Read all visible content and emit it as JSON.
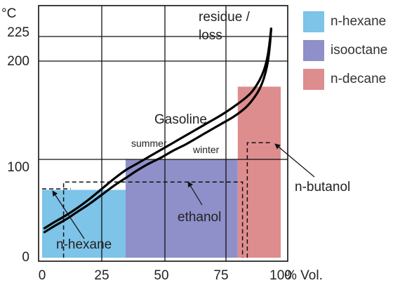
{
  "chart_data": {
    "type": "area",
    "x_unit_label": "% Vol.",
    "y_unit_label": "°C",
    "xlim": [
      0,
      100
    ],
    "ylim": [
      0,
      245
    ],
    "x_ticks": [
      0,
      25,
      50,
      75,
      100
    ],
    "y_ticks": [
      0,
      100,
      200,
      225
    ],
    "grid": true,
    "legend_placement": "right",
    "components": [
      {
        "name": "n-hexane",
        "label": "n-hexane",
        "color": "#7ec3e8",
        "x_start": 0,
        "x_end": 35,
        "boiling_point": 69
      },
      {
        "name": "isooctane",
        "label": "isooctane",
        "color": "#8f90c9",
        "x_start": 35,
        "x_end": 82,
        "boiling_point": 100
      },
      {
        "name": "n-decane",
        "label": "n-decane",
        "color": "#de8d8e",
        "x_start": 82,
        "x_end": 100,
        "boiling_point": 174
      }
    ],
    "series": [
      {
        "name": "summer",
        "values": [
          [
            1,
            30
          ],
          [
            5,
            36
          ],
          [
            10,
            43
          ],
          [
            15,
            51
          ],
          [
            20,
            60
          ],
          [
            25,
            70
          ],
          [
            30,
            80
          ],
          [
            35,
            89
          ],
          [
            40,
            96
          ],
          [
            45,
            103
          ],
          [
            50,
            110
          ],
          [
            55,
            117
          ],
          [
            60,
            124
          ],
          [
            65,
            131
          ],
          [
            70,
            138
          ],
          [
            75,
            145
          ],
          [
            80,
            153
          ],
          [
            85,
            162
          ],
          [
            88,
            169
          ],
          [
            91,
            180
          ],
          [
            93,
            191
          ],
          [
            94.5,
            205
          ],
          [
            95.5,
            222
          ],
          [
            96,
            233
          ]
        ]
      },
      {
        "name": "winter",
        "values": [
          [
            1,
            26
          ],
          [
            5,
            32
          ],
          [
            10,
            39
          ],
          [
            15,
            47
          ],
          [
            20,
            55
          ],
          [
            25,
            64
          ],
          [
            30,
            73
          ],
          [
            35,
            81
          ],
          [
            40,
            89
          ],
          [
            45,
            96
          ],
          [
            50,
            102
          ],
          [
            55,
            109
          ],
          [
            60,
            115
          ],
          [
            65,
            122
          ],
          [
            70,
            129
          ],
          [
            75,
            136
          ],
          [
            80,
            143
          ],
          [
            85,
            152
          ],
          [
            88,
            160
          ],
          [
            91,
            171
          ],
          [
            93,
            183
          ],
          [
            94.5,
            198
          ],
          [
            95.5,
            217
          ],
          [
            96,
            233
          ]
        ]
      }
    ],
    "dashed_series": [
      {
        "name": "n-butanol",
        "values": [
          [
            86,
            0
          ],
          [
            86,
            117
          ],
          [
            96,
            117
          ]
        ]
      },
      {
        "name": "ethanol",
        "values": [
          [
            9,
            0
          ],
          [
            9,
            77
          ],
          [
            84,
            77
          ],
          [
            84,
            0
          ]
        ]
      },
      {
        "name": "n-hexane-dashed",
        "values": [
          [
            0,
            70
          ],
          [
            12,
            70
          ]
        ]
      }
    ],
    "annotations": [
      {
        "id": "residue",
        "lines": [
          "residue /",
          "loss"
        ]
      },
      {
        "id": "gasoline",
        "text": "Gasoline"
      },
      {
        "id": "summer",
        "text": "summer"
      },
      {
        "id": "winter",
        "text": "winter"
      },
      {
        "id": "n-butanol",
        "text": "n-butanol"
      },
      {
        "id": "ethanol",
        "text": "ethanol"
      },
      {
        "id": "n-hexane",
        "text": "n-hexane"
      }
    ]
  }
}
